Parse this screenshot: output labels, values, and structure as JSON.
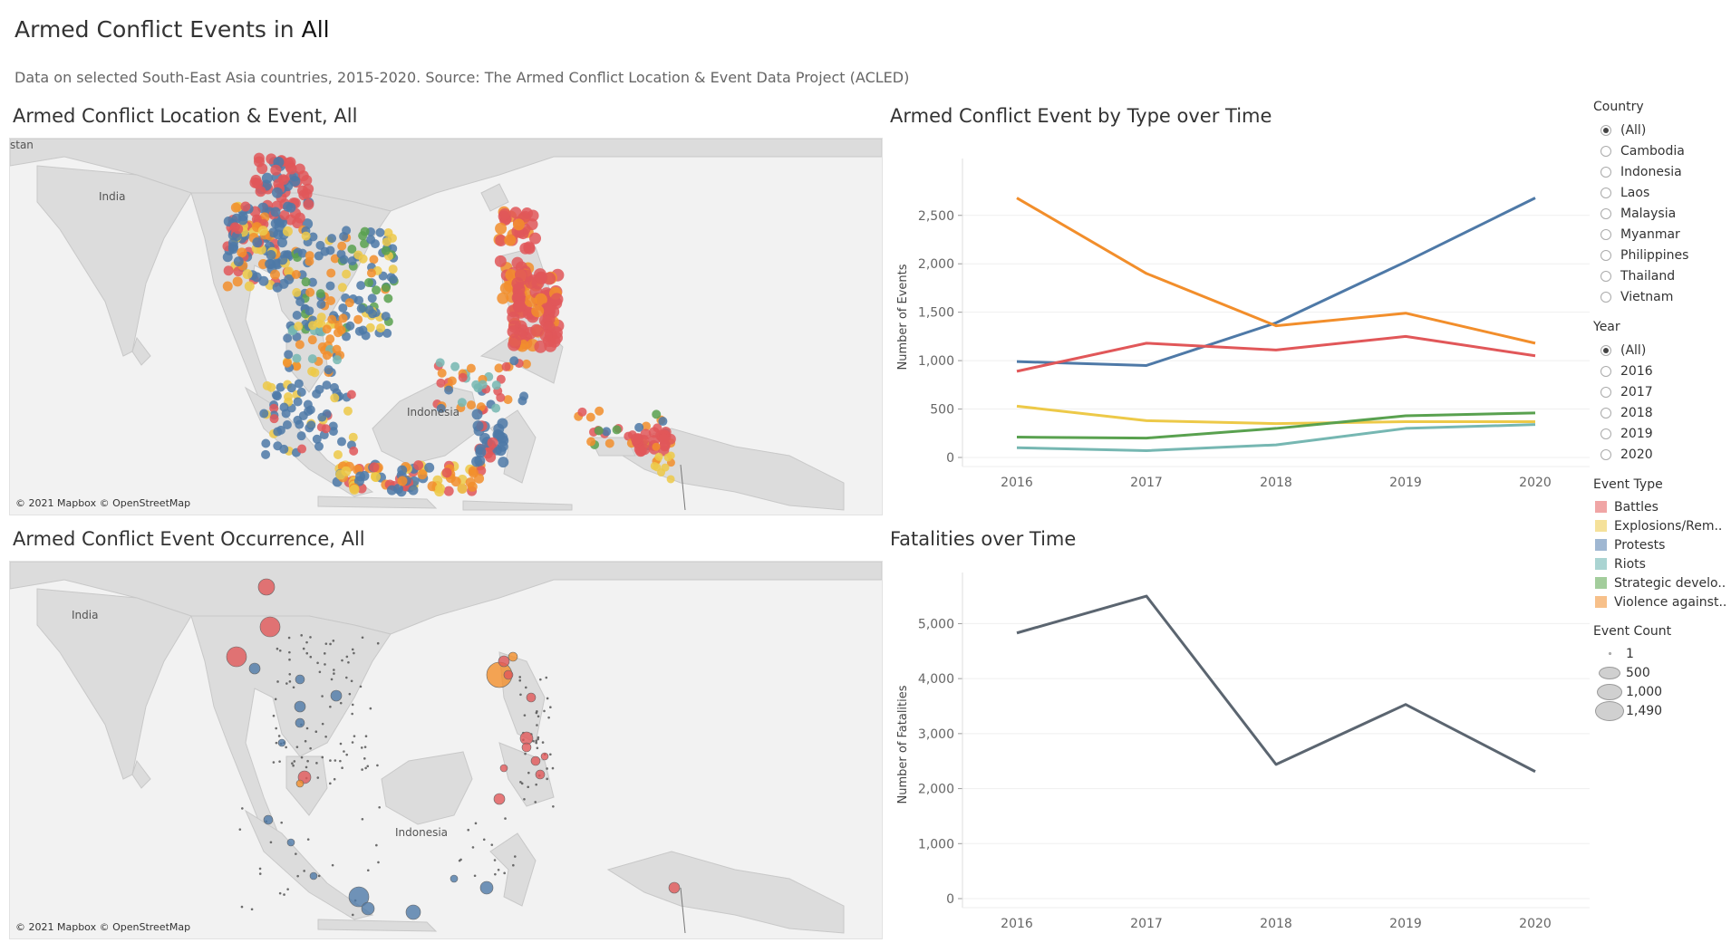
{
  "header": {
    "title_prefix": "Armed Conflict Events in ",
    "title_value": "All",
    "subtitle": "Data on selected South-East Asia countries, 2015-2020. Source: The Armed Conflict Location & Event Data Project (ACLED)"
  },
  "map1": {
    "title": "Armed Conflict Location & Event, All",
    "label_stan": "stan",
    "label_india": "India",
    "label_indonesia": "Indonesia",
    "credit": "© 2021 Mapbox © OpenStreetMap"
  },
  "map2": {
    "title": "Armed Conflict Event Occurrence, All",
    "label_india": "India",
    "label_indonesia": "Indonesia",
    "credit": "© 2021 Mapbox © OpenStreetMap"
  },
  "chart_data": [
    {
      "type": "line",
      "title": "Armed Conflict Event by Type over Time",
      "xlabel": "",
      "ylabel": "Number of Events",
      "x": [
        "2016",
        "2017",
        "2018",
        "2019",
        "2020"
      ],
      "ylim": [
        0,
        2900
      ],
      "yticks": [
        0,
        500,
        1000,
        1500,
        2000,
        2500
      ],
      "ytick_labels": [
        "0",
        "500",
        "1,000",
        "1,500",
        "2,000",
        "2,500"
      ],
      "grid": true,
      "series": [
        {
          "name": "Protests",
          "color": "#4e79a7",
          "values": [
            990,
            950,
            1390,
            2020,
            2680
          ]
        },
        {
          "name": "Violence against..",
          "color": "#f28e2b",
          "values": [
            2680,
            1900,
            1360,
            1490,
            1180
          ]
        },
        {
          "name": "Battles",
          "color": "#e15759",
          "values": [
            890,
            1180,
            1110,
            1250,
            1050
          ]
        },
        {
          "name": "Explosions/Rem..",
          "color": "#edc948",
          "values": [
            530,
            380,
            350,
            370,
            370
          ]
        },
        {
          "name": "Strategic develo..",
          "color": "#59a14f",
          "values": [
            210,
            200,
            300,
            430,
            460
          ]
        },
        {
          "name": "Riots",
          "color": "#76b7b2",
          "values": [
            100,
            70,
            130,
            300,
            340
          ]
        }
      ]
    },
    {
      "type": "line",
      "title": "Fatalities over Time",
      "xlabel": "",
      "ylabel": "Number of Fatalities",
      "x": [
        "2016",
        "2017",
        "2018",
        "2019",
        "2020"
      ],
      "ylim": [
        0,
        5600
      ],
      "yticks": [
        0,
        1000,
        2000,
        3000,
        4000,
        5000
      ],
      "ytick_labels": [
        "0",
        "1,000",
        "2,000",
        "3,000",
        "4,000",
        "5,000"
      ],
      "grid": true,
      "series": [
        {
          "name": "",
          "color": "#5b6570",
          "values": [
            4830,
            5500,
            2440,
            3530,
            2310
          ]
        }
      ]
    }
  ],
  "legend": {
    "country": {
      "title": "Country",
      "options": [
        "(All)",
        "Cambodia",
        "Indonesia",
        "Laos",
        "Malaysia",
        "Myanmar",
        "Philippines",
        "Thailand",
        "Vietnam"
      ],
      "selected": "(All)"
    },
    "year": {
      "title": "Year",
      "options": [
        "(All)",
        "2016",
        "2017",
        "2018",
        "2019",
        "2020"
      ],
      "selected": "(All)"
    },
    "event_type": {
      "title": "Event Type",
      "items": [
        {
          "label": "Battles",
          "color": "#f0a5a5"
        },
        {
          "label": "Explosions/Rem..",
          "color": "#f5e19a"
        },
        {
          "label": "Protests",
          "color": "#9fb7d2"
        },
        {
          "label": "Riots",
          "color": "#aad4d2"
        },
        {
          "label": "Strategic develo..",
          "color": "#a3cd9c"
        },
        {
          "label": "Violence against..",
          "color": "#f7c08a"
        }
      ]
    },
    "event_count": {
      "title": "Event Count",
      "items": [
        {
          "label": "1",
          "size": 3
        },
        {
          "label": "500",
          "size": 14
        },
        {
          "label": "1,000",
          "size": 18
        },
        {
          "label": "1,490",
          "size": 22
        }
      ]
    }
  }
}
